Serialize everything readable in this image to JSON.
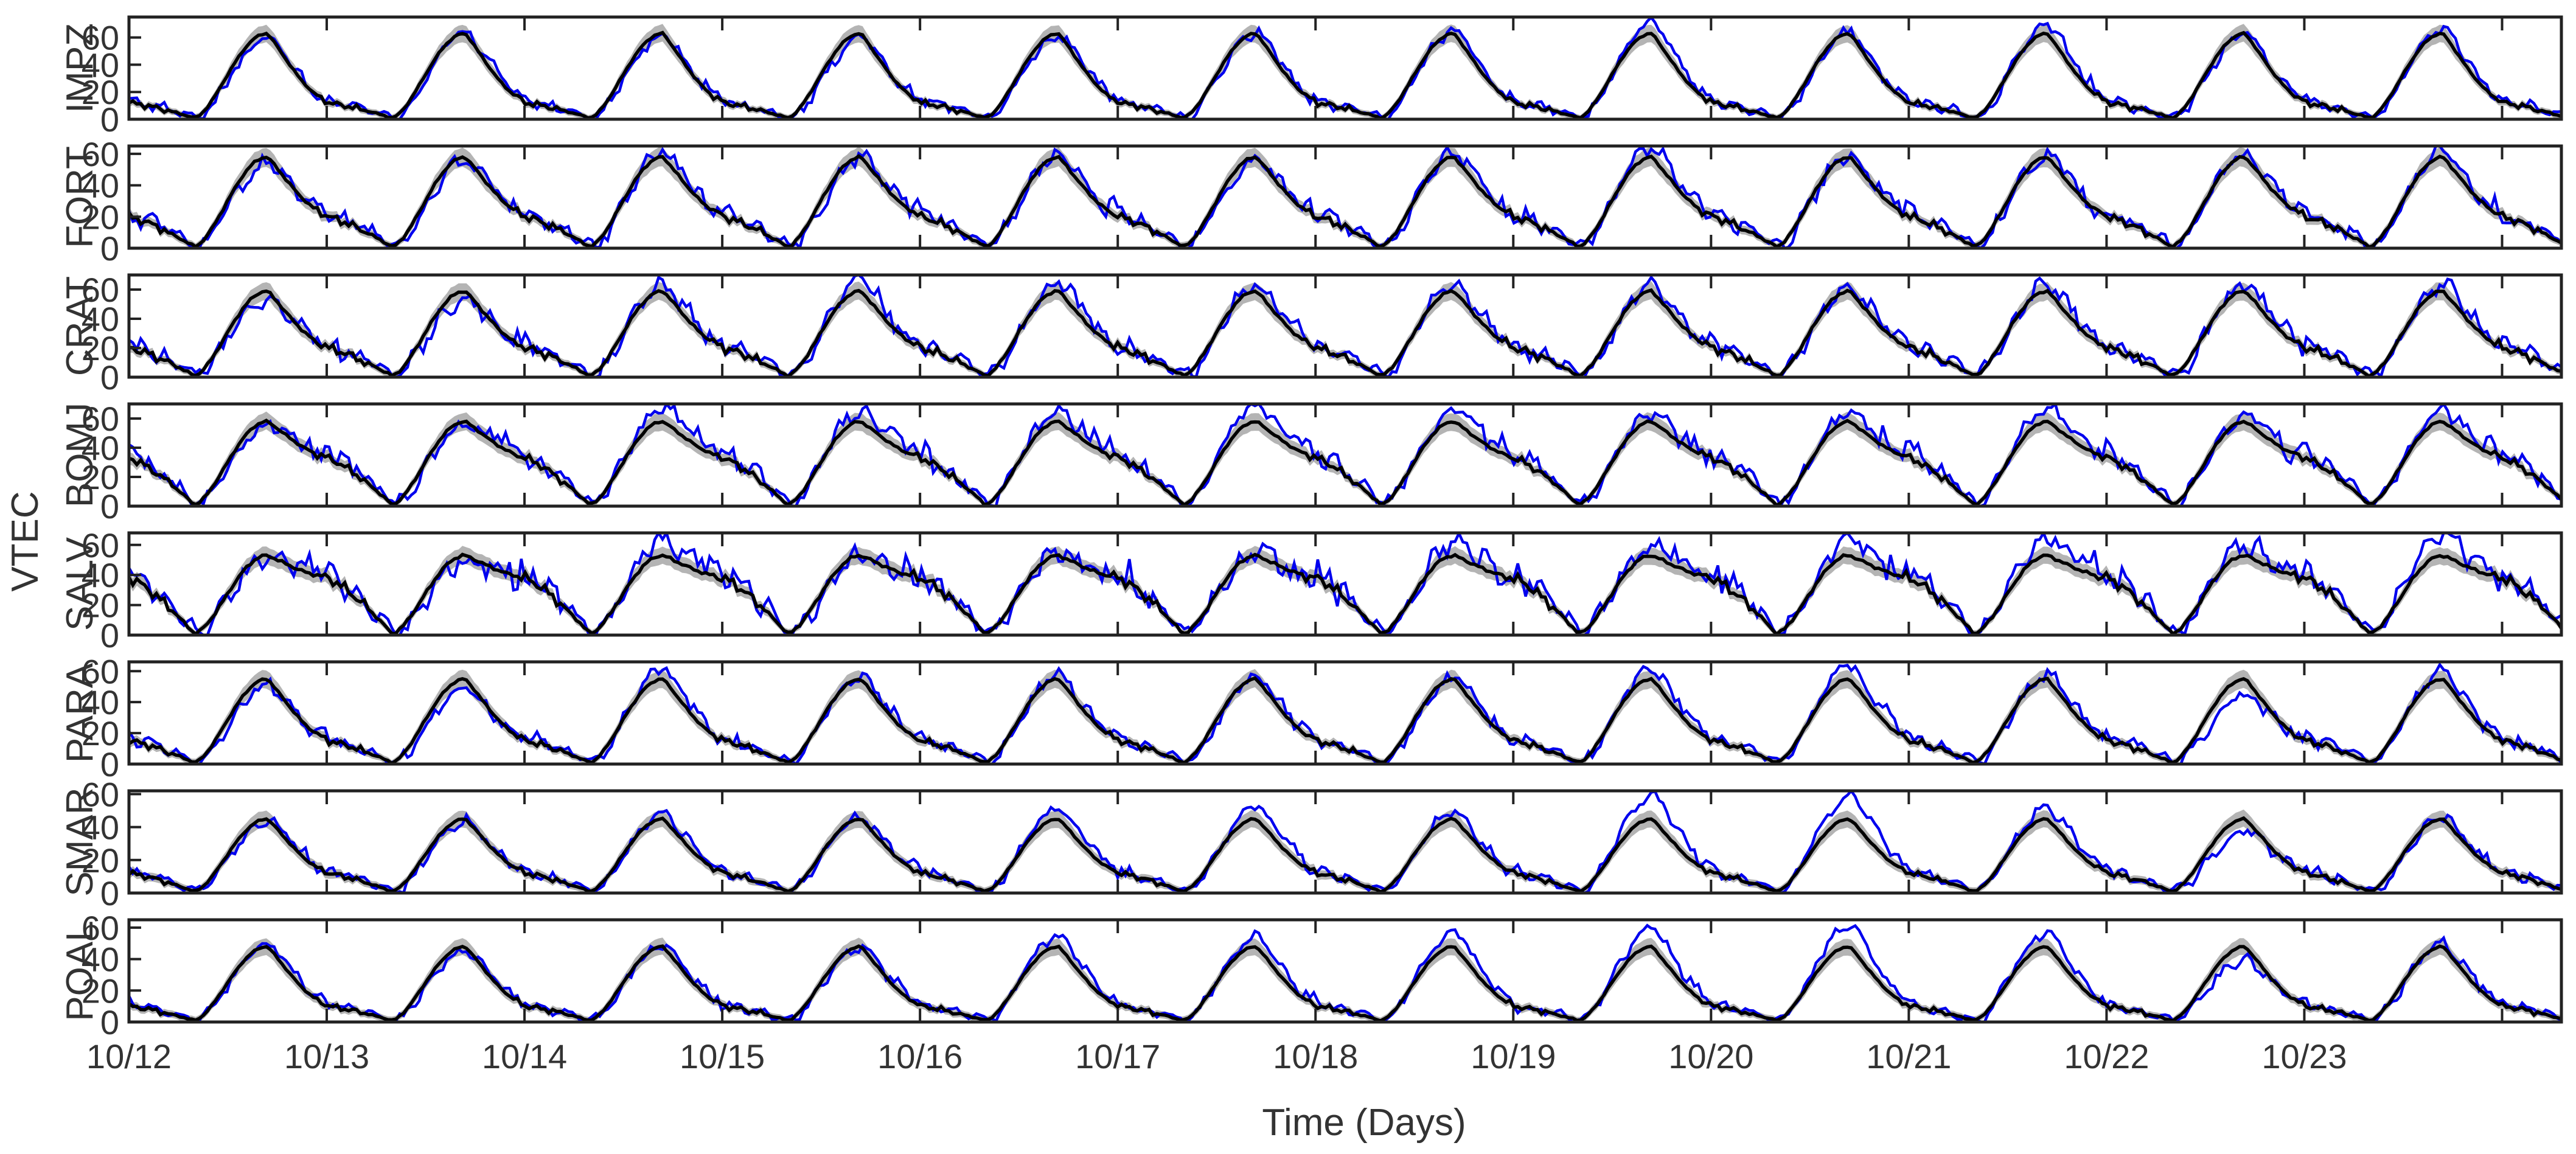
{
  "chart_data": {
    "type": "line",
    "ylabel": "VTEC",
    "xlabel": "Time (Days)",
    "x_tick_labels": [
      "10/12",
      "10/13",
      "10/14",
      "10/15",
      "10/16",
      "10/17",
      "10/18",
      "10/19",
      "10/20",
      "10/21",
      "10/22",
      "10/23"
    ],
    "days": 12.3,
    "colors": {
      "observed": "#0000ee",
      "model": "#000000",
      "band": "#b4b4b4",
      "axis": "#222222"
    },
    "series_names": [
      "observed (blue)",
      "model mean (black)",
      "model spread (gray band)"
    ],
    "panels": [
      {
        "station": "IMPZ",
        "ylim": [
          0,
          75
        ],
        "yticks": [
          "0",
          "20",
          "40",
          "60"
        ],
        "peak": 63,
        "night": 12,
        "noise": 5,
        "peak_obs": [
          60,
          64,
          63,
          60,
          62,
          64,
          65,
          72,
          64,
          70,
          64,
          67
        ]
      },
      {
        "station": "FORT",
        "ylim": [
          0,
          65
        ],
        "yticks": [
          "0",
          "20",
          "40",
          "60"
        ],
        "peak": 58,
        "night": 20,
        "noise": 6,
        "peak_obs": [
          54,
          56,
          62,
          58,
          60,
          56,
          62,
          64,
          60,
          60,
          60,
          62
        ]
      },
      {
        "station": "CRAT",
        "ylim": [
          0,
          70
        ],
        "yticks": [
          "0",
          "20",
          "40",
          "60"
        ],
        "peak": 59,
        "night": 20,
        "noise": 7,
        "peak_obs": [
          55,
          55,
          63,
          66,
          65,
          64,
          63,
          62,
          62,
          64,
          64,
          65
        ]
      },
      {
        "station": "BOMJ",
        "ylim": [
          0,
          70
        ],
        "yticks": [
          "0",
          "20",
          "40",
          "60"
        ],
        "peak": 58,
        "night": 33,
        "noise": 6,
        "peak_obs": [
          56,
          57,
          68,
          66,
          66,
          70,
          66,
          64,
          64,
          68,
          62,
          66
        ]
      },
      {
        "station": "SALV",
        "ylim": [
          0,
          68
        ],
        "yticks": [
          "0",
          "20",
          "40",
          "60"
        ],
        "peak": 53,
        "night": 38,
        "noise": 8,
        "peak_obs": [
          52,
          50,
          65,
          54,
          55,
          56,
          62,
          60,
          63,
          66,
          60,
          68
        ]
      },
      {
        "station": "PARA",
        "ylim": [
          0,
          66
        ],
        "yticks": [
          "0",
          "20",
          "40",
          "60"
        ],
        "peak": 55,
        "night": 15,
        "noise": 5,
        "peak_obs": [
          52,
          51,
          62,
          58,
          58,
          56,
          56,
          62,
          64,
          58,
          45,
          60
        ]
      },
      {
        "station": "SMAR",
        "ylim": [
          0,
          62
        ],
        "yticks": [
          "0",
          "20",
          "40",
          "60"
        ],
        "peak": 45,
        "night": 12,
        "noise": 4,
        "peak_obs": [
          44,
          44,
          48,
          46,
          52,
          52,
          50,
          60,
          60,
          52,
          38,
          46
        ]
      },
      {
        "station": "POAL",
        "ylim": [
          0,
          65
        ],
        "yticks": [
          "0",
          "20",
          "40",
          "60"
        ],
        "peak": 48,
        "night": 10,
        "noise": 4,
        "peak_obs": [
          50,
          46,
          50,
          48,
          55,
          55,
          58,
          60,
          62,
          58,
          40,
          50
        ]
      }
    ]
  }
}
